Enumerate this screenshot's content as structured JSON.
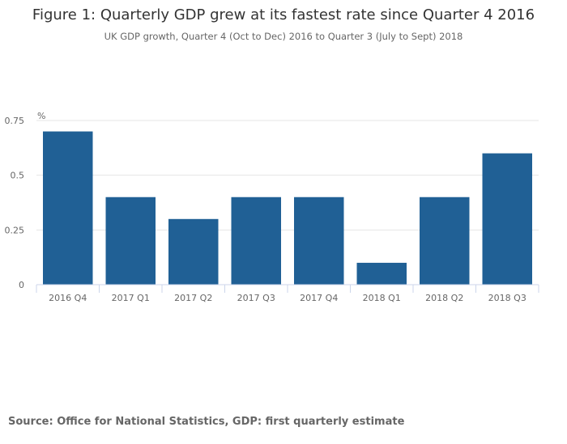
{
  "chart_data": {
    "type": "bar",
    "title": "Figure 1: Quarterly GDP grew at its fastest rate since Quarter 4 2016",
    "subtitle": "UK GDP growth, Quarter 4 (Oct to Dec) 2016 to Quarter 3 (July to Sept) 2018",
    "ylabel": "%",
    "xlabel": "",
    "categories": [
      "2016 Q4",
      "2017 Q1",
      "2017 Q2",
      "2017 Q3",
      "2017 Q4",
      "2018 Q1",
      "2018 Q2",
      "2018 Q3"
    ],
    "values": [
      0.7,
      0.4,
      0.3,
      0.4,
      0.4,
      0.1,
      0.4,
      0.6
    ],
    "ylim": [
      0,
      0.75
    ],
    "yticks": [
      "0",
      "0.25",
      "0.5",
      "0.75"
    ],
    "grid": true,
    "bar_color": "#206095"
  },
  "source": "Source: Office for National Statistics, GDP: first quarterly estimate"
}
